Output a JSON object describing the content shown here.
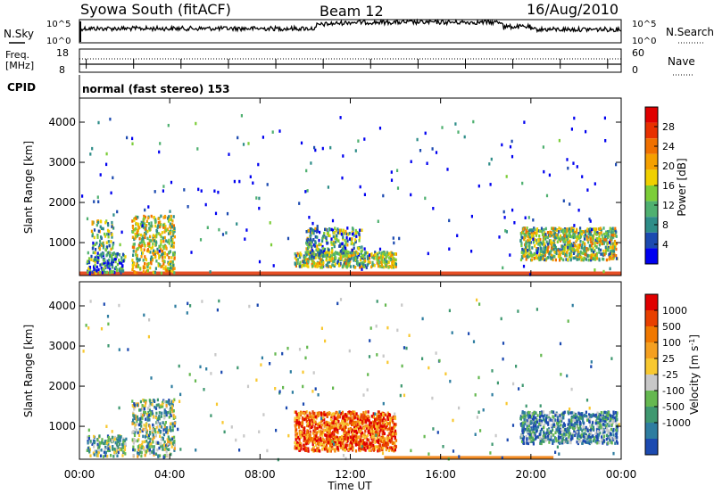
{
  "header": {
    "station": "Syowa South (fitACF)",
    "beam": "Beam 12",
    "date": "16/Aug/2010"
  },
  "top_panels": {
    "nsky_label": "N.Sky",
    "nsearch_label": "N.Search",
    "freq_label_1": "Freq.",
    "freq_label_2": "[MHz]",
    "nave_label": "Nave",
    "cpid_label": "CPID",
    "cpid_text": "normal (fast stereo) 153",
    "noise_ticks_left": [
      "10^5",
      "10^0"
    ],
    "noise_ticks_right": [
      "10^5",
      "10^0"
    ],
    "freq_ticks_left": [
      "18",
      "8"
    ],
    "nave_ticks_right": [
      "60",
      "0"
    ]
  },
  "chart_data": [
    {
      "type": "heatmap",
      "name": "power",
      "xlabel": "",
      "ylabel": "Slant Range [km]",
      "x_ticks": [
        "00:00",
        "04:00",
        "08:00",
        "12:00",
        "16:00",
        "20:00",
        "00:00"
      ],
      "y_ticks": [
        "1000",
        "2000",
        "3000",
        "4000"
      ],
      "xlim_hours": [
        0,
        24
      ],
      "ylim_km": [
        180,
        4600
      ],
      "colorbar": {
        "label": "Power [dB]",
        "ticks": [
          "4",
          "8",
          "12",
          "16",
          "20",
          "24",
          "28"
        ],
        "colors": [
          "#0000f0",
          "#1c4ab0",
          "#2e8d88",
          "#4fb070",
          "#7ccd38",
          "#f0d000",
          "#f5a000",
          "#f07000",
          "#e83000",
          "#e00000"
        ]
      },
      "scatter_regions": [
        {
          "t": [
            0.3,
            2.0
          ],
          "r": [
            280,
            800
          ],
          "density": 0.3,
          "level": 0.25
        },
        {
          "t": [
            0.5,
            1.5
          ],
          "r": [
            850,
            1600
          ],
          "density": 0.18,
          "level": 0.4
        },
        {
          "t": [
            2.3,
            4.2
          ],
          "r": [
            280,
            1700
          ],
          "density": 0.25,
          "level": 0.5
        },
        {
          "t": [
            9.5,
            14.0
          ],
          "r": [
            420,
            800
          ],
          "density": 0.45,
          "level": 0.45
        },
        {
          "t": [
            10.0,
            12.5
          ],
          "r": [
            700,
            1400
          ],
          "density": 0.25,
          "level": 0.35
        },
        {
          "t": [
            19.5,
            23.8
          ],
          "r": [
            600,
            1400
          ],
          "density": 0.4,
          "level": 0.45
        },
        {
          "t": [
            0,
            24
          ],
          "r": [
            200,
            4200
          ],
          "density": 0.004,
          "level": 0.15
        }
      ],
      "ground_scatter_band": {
        "t": [
          0,
          24
        ],
        "r": [
          180,
          280
        ],
        "color": "#e03000"
      }
    },
    {
      "type": "heatmap",
      "name": "velocity",
      "xlabel": "Time UT",
      "ylabel": "Slant Range [km]",
      "x_ticks": [
        "00:00",
        "04:00",
        "08:00",
        "12:00",
        "16:00",
        "20:00",
        "00:00"
      ],
      "y_ticks": [
        "1000",
        "2000",
        "3000",
        "4000"
      ],
      "xlim_hours": [
        0,
        24
      ],
      "ylim_km": [
        180,
        4600
      ],
      "colorbar": {
        "label": "Velocity [m s-1]",
        "ticks": [
          "1000",
          "500",
          "100",
          "25",
          "-25",
          "-100",
          "-500",
          "-1000"
        ],
        "colors": [
          "#1c4ab0",
          "#2e7da0",
          "#3f9870",
          "#65b850",
          "#c8c8c8",
          "#f8c830",
          "#f5a020",
          "#f07800",
          "#e84000",
          "#e00000"
        ]
      },
      "scatter_regions": [
        {
          "t": [
            0.3,
            2.0
          ],
          "r": [
            280,
            800
          ],
          "density": 0.3,
          "level": 0.3
        },
        {
          "t": [
            2.3,
            4.2
          ],
          "r": [
            280,
            1700
          ],
          "density": 0.25,
          "level": 0.35
        },
        {
          "t": [
            9.5,
            14.0
          ],
          "r": [
            420,
            1400
          ],
          "density": 0.45,
          "level": 0.8
        },
        {
          "t": [
            19.5,
            23.8
          ],
          "r": [
            600,
            1400
          ],
          "density": 0.4,
          "level": 0.2
        },
        {
          "t": [
            0,
            24
          ],
          "r": [
            200,
            4200
          ],
          "density": 0.004,
          "level": 0.3
        }
      ],
      "ground_scatter_band": {
        "t": [
          13.5,
          21.0
        ],
        "r": [
          180,
          260
        ],
        "color": "#f07800"
      }
    }
  ]
}
